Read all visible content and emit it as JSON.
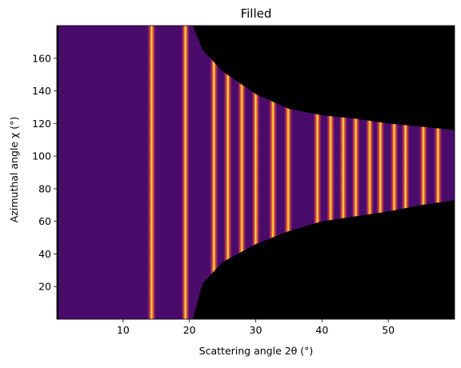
{
  "chart_data": {
    "type": "heatmap",
    "title": "Filled",
    "xlabel": "Scattering angle 2θ (°)",
    "ylabel": "Azimuthal angle χ (°)",
    "xlim": [
      0,
      60
    ],
    "ylim": [
      0,
      180
    ],
    "x_ticks": [
      "10",
      "20",
      "30",
      "40",
      "50"
    ],
    "y_ticks": [
      "20",
      "40",
      "60",
      "80",
      "100",
      "120",
      "140",
      "160"
    ],
    "x_tick_values": [
      10,
      20,
      30,
      40,
      50
    ],
    "y_tick_values": [
      20,
      40,
      60,
      80,
      100,
      120,
      140,
      160
    ],
    "colormap": "inferno",
    "background_color": "#4a0c6b",
    "masked_color": "#000000",
    "ring_positions_2theta": [
      14.3,
      19.4,
      23.7,
      25.8,
      27.9,
      30.0,
      32.6,
      34.9,
      39.3,
      41.3,
      43.2,
      45.1,
      47.2,
      48.8,
      50.9,
      52.6,
      55.3,
      57.5
    ],
    "ring_peak_width_2theta": 0.6,
    "detector_coverage_boundary": [
      {
        "x": 20.5,
        "chi_low": 0,
        "chi_high": 180
      },
      {
        "x": 22,
        "chi_low": 22,
        "chi_high": 165
      },
      {
        "x": 25,
        "chi_low": 35,
        "chi_high": 152
      },
      {
        "x": 30,
        "chi_low": 46,
        "chi_high": 138
      },
      {
        "x": 35,
        "chi_low": 54,
        "chi_high": 129
      },
      {
        "x": 40,
        "chi_low": 60,
        "chi_high": 125
      },
      {
        "x": 45,
        "chi_low": 63,
        "chi_high": 123
      },
      {
        "x": 50,
        "chi_low": 66,
        "chi_high": 120
      },
      {
        "x": 55,
        "chi_low": 70,
        "chi_high": 118
      },
      {
        "x": 60,
        "chi_low": 73,
        "chi_high": 116
      }
    ]
  }
}
